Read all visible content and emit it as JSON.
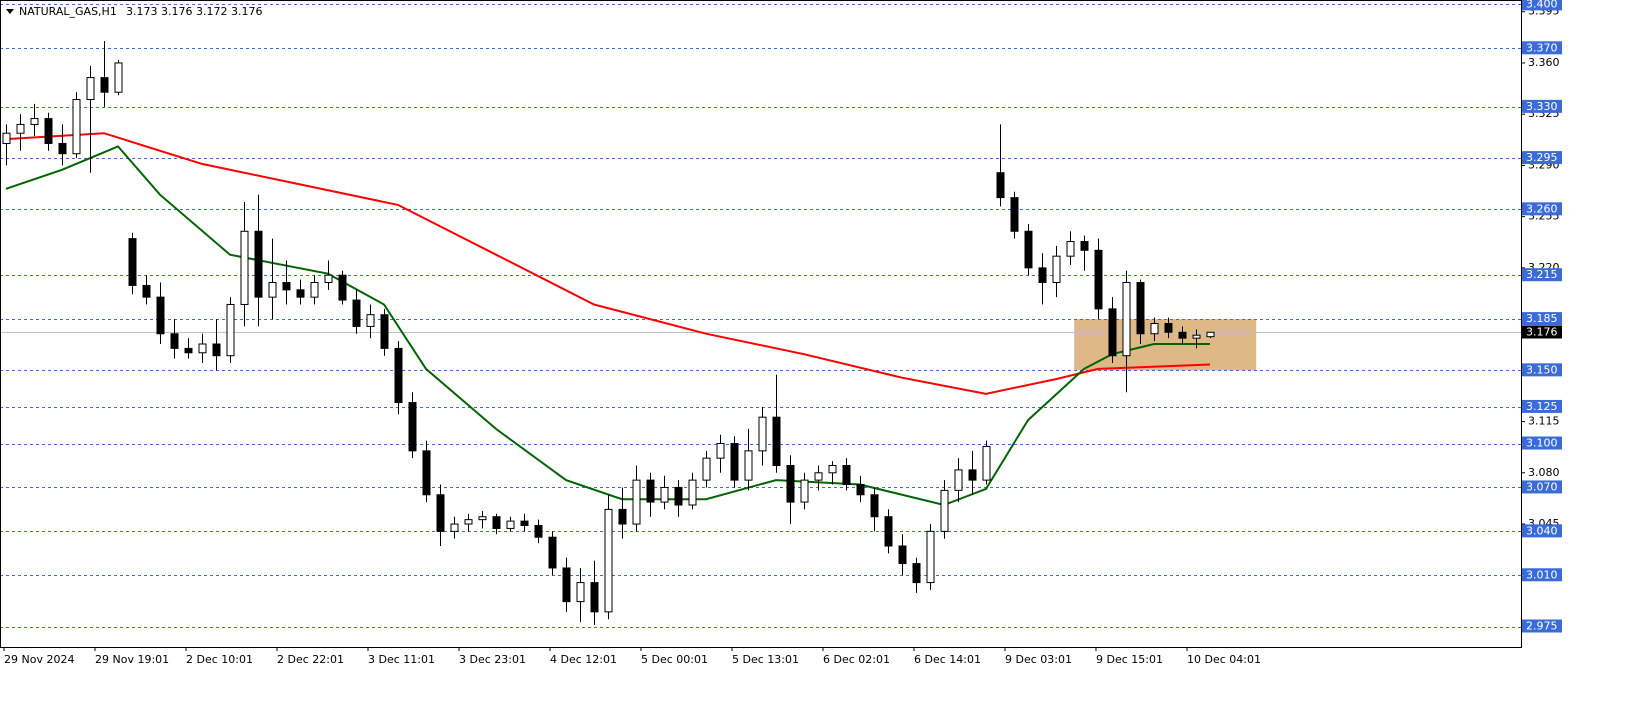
{
  "chart_data": {
    "type": "candlestick",
    "symbol": "NATURAL_GAS,H1",
    "quote": "3.173 3.176 3.172 3.176",
    "ylim": [
      2.961,
      3.403
    ],
    "yticks": [
      3.395,
      {
        "value": 3.36,
        "label": "3.360"
      },
      3.325,
      {
        "value": 3.29,
        "label": "3.290"
      },
      3.255,
      {
        "value": 3.22,
        "label": "3.220"
      },
      3.185,
      {
        "value": 3.15,
        "label": "3.150"
      },
      3.115,
      {
        "value": 3.08,
        "label": "3.080"
      },
      3.045,
      {
        "value": 3.01,
        "label": "3.010"
      },
      2.975
    ],
    "levels": [
      {
        "value": 3.4,
        "label": "3.400"
      },
      {
        "value": 3.37,
        "label": "3.370"
      },
      {
        "value": 3.33,
        "label": "3.330"
      },
      3.295,
      {
        "value": 3.26,
        "label": "3.260"
      },
      3.215,
      3.185,
      {
        "value": 3.15,
        "label": "3.150"
      },
      3.125,
      {
        "value": 3.1,
        "label": "3.100"
      },
      {
        "value": 3.07,
        "label": "3.070"
      },
      {
        "value": 3.04,
        "label": "3.040"
      },
      {
        "value": 3.01,
        "label": "3.010"
      },
      2.975
    ],
    "level_color": "#3a6bd6",
    "current_price": 3.176,
    "categories": [
      "29 Nov 2024",
      "29 Nov 19:01",
      "2 Dec 10:01",
      "2 Dec 22:01",
      "3 Dec 11:01",
      "3 Dec 23:01",
      "4 Dec 12:01",
      "5 Dec 00:01",
      "5 Dec 13:01",
      "6 Dec 02:01",
      "6 Dec 14:01",
      "9 Dec 03:01",
      "9 Dec 15:01",
      "10 Dec 04:01"
    ],
    "candles": [
      [
        3.305,
        3.318,
        3.29,
        3.312
      ],
      [
        3.312,
        3.325,
        3.3,
        3.318
      ],
      [
        3.318,
        3.332,
        3.31,
        3.322
      ],
      [
        3.322,
        3.326,
        3.3,
        3.305
      ],
      [
        3.305,
        3.318,
        3.29,
        3.298
      ],
      [
        3.298,
        3.34,
        3.295,
        3.335
      ],
      [
        3.335,
        3.358,
        3.285,
        3.35
      ],
      [
        3.35,
        3.375,
        3.33,
        3.34
      ],
      [
        3.34,
        3.362,
        3.338,
        3.36
      ],
      [
        3.24,
        3.244,
        3.202,
        3.208
      ],
      [
        3.208,
        3.215,
        3.195,
        3.2
      ],
      [
        3.2,
        3.21,
        3.168,
        3.175
      ],
      [
        3.175,
        3.185,
        3.158,
        3.165
      ],
      [
        3.165,
        3.172,
        3.158,
        3.162
      ],
      [
        3.162,
        3.175,
        3.155,
        3.168
      ],
      [
        3.168,
        3.185,
        3.15,
        3.16
      ],
      [
        3.16,
        3.2,
        3.155,
        3.195
      ],
      [
        3.195,
        3.265,
        3.18,
        3.245
      ],
      [
        3.245,
        3.27,
        3.18,
        3.2
      ],
      [
        3.2,
        3.24,
        3.185,
        3.21
      ],
      [
        3.21,
        3.225,
        3.195,
        3.205
      ],
      [
        3.205,
        3.212,
        3.195,
        3.2
      ],
      [
        3.2,
        3.215,
        3.195,
        3.21
      ],
      [
        3.21,
        3.225,
        3.205,
        3.215
      ],
      [
        3.215,
        3.218,
        3.195,
        3.198
      ],
      [
        3.198,
        3.205,
        3.175,
        3.18
      ],
      [
        3.18,
        3.195,
        3.172,
        3.188
      ],
      [
        3.188,
        3.192,
        3.16,
        3.165
      ],
      [
        3.165,
        3.17,
        3.12,
        3.128
      ],
      [
        3.128,
        3.135,
        3.09,
        3.095
      ],
      [
        3.095,
        3.102,
        3.06,
        3.065
      ],
      [
        3.065,
        3.072,
        3.03,
        3.04
      ],
      [
        3.04,
        3.05,
        3.035,
        3.045
      ],
      [
        3.045,
        3.052,
        3.04,
        3.048
      ],
      [
        3.048,
        3.054,
        3.042,
        3.05
      ],
      [
        3.05,
        3.052,
        3.038,
        3.042
      ],
      [
        3.042,
        3.05,
        3.04,
        3.047
      ],
      [
        3.047,
        3.052,
        3.04,
        3.044
      ],
      [
        3.044,
        3.048,
        3.032,
        3.036
      ],
      [
        3.036,
        3.04,
        3.01,
        3.015
      ],
      [
        3.015,
        3.022,
        2.985,
        2.992
      ],
      [
        2.992,
        3.015,
        2.978,
        3.005
      ],
      [
        3.005,
        3.02,
        2.976,
        2.985
      ],
      [
        2.985,
        3.065,
        2.98,
        3.055
      ],
      [
        3.055,
        3.07,
        3.035,
        3.045
      ],
      [
        3.045,
        3.085,
        3.04,
        3.075
      ],
      [
        3.075,
        3.08,
        3.05,
        3.06
      ],
      [
        3.06,
        3.078,
        3.055,
        3.07
      ],
      [
        3.07,
        3.075,
        3.05,
        3.058
      ],
      [
        3.058,
        3.08,
        3.055,
        3.075
      ],
      [
        3.075,
        3.095,
        3.07,
        3.09
      ],
      [
        3.09,
        3.106,
        3.08,
        3.1
      ],
      [
        3.1,
        3.105,
        3.07,
        3.075
      ],
      [
        3.075,
        3.11,
        3.068,
        3.095
      ],
      [
        3.095,
        3.125,
        3.085,
        3.118
      ],
      [
        3.118,
        3.147,
        3.08,
        3.085
      ],
      [
        3.085,
        3.092,
        3.045,
        3.06
      ],
      [
        3.06,
        3.08,
        3.055,
        3.075
      ],
      [
        3.075,
        3.085,
        3.068,
        3.08
      ],
      [
        3.08,
        3.088,
        3.072,
        3.085
      ],
      [
        3.085,
        3.09,
        3.068,
        3.072
      ],
      [
        3.072,
        3.078,
        3.06,
        3.065
      ],
      [
        3.065,
        3.07,
        3.04,
        3.05
      ],
      [
        3.05,
        3.055,
        3.025,
        3.03
      ],
      [
        3.03,
        3.038,
        3.01,
        3.018
      ],
      [
        3.018,
        3.022,
        2.998,
        3.005
      ],
      [
        3.005,
        3.045,
        3.0,
        3.04
      ],
      [
        3.04,
        3.075,
        3.035,
        3.068
      ],
      [
        3.068,
        3.09,
        3.06,
        3.082
      ],
      [
        3.082,
        3.095,
        3.065,
        3.075
      ],
      [
        3.075,
        3.102,
        3.072,
        3.098
      ],
      [
        3.285,
        3.318,
        3.262,
        3.268
      ],
      [
        3.268,
        3.272,
        3.24,
        3.245
      ],
      [
        3.245,
        3.25,
        3.215,
        3.22
      ],
      [
        3.22,
        3.23,
        3.195,
        3.21
      ],
      [
        3.21,
        3.235,
        3.2,
        3.228
      ],
      [
        3.228,
        3.245,
        3.222,
        3.238
      ],
      [
        3.238,
        3.242,
        3.218,
        3.232
      ],
      [
        3.232,
        3.24,
        3.185,
        3.192
      ],
      [
        3.192,
        3.2,
        3.155,
        3.16
      ],
      [
        3.16,
        3.218,
        3.135,
        3.21
      ],
      [
        3.21,
        3.212,
        3.168,
        3.175
      ],
      [
        3.175,
        3.186,
        3.17,
        3.182
      ],
      [
        3.182,
        3.186,
        3.172,
        3.176
      ],
      [
        3.176,
        3.18,
        3.168,
        3.172
      ],
      [
        3.172,
        3.178,
        3.165,
        3.174
      ],
      [
        3.173,
        3.176,
        3.172,
        3.176
      ]
    ],
    "ma": [
      {
        "color": "#ff0000",
        "x": [
          0,
          7,
          14,
          21,
          28,
          35,
          42,
          50,
          57,
          64,
          70,
          75,
          78,
          86
        ],
        "values": [
          3.308,
          3.312,
          3.291,
          3.277,
          3.263,
          3.229,
          3.195,
          3.175,
          3.161,
          3.145,
          3.134,
          3.144,
          3.151,
          3.154
        ]
      },
      {
        "color": "#006400",
        "x": [
          0,
          4,
          8,
          11,
          16,
          23,
          27,
          30,
          35,
          40,
          44,
          50,
          55,
          61,
          67,
          70,
          73,
          77,
          79,
          82,
          86
        ],
        "values": [
          3.274,
          3.287,
          3.303,
          3.27,
          3.229,
          3.216,
          3.195,
          3.151,
          3.11,
          3.075,
          3.062,
          3.062,
          3.075,
          3.072,
          3.058,
          3.069,
          3.116,
          3.151,
          3.161,
          3.168,
          3.168
        ]
      }
    ],
    "zone": {
      "from": 3.15,
      "to": 3.185,
      "x": [
        76.3,
        89.3
      ],
      "color": "#deb887"
    }
  }
}
